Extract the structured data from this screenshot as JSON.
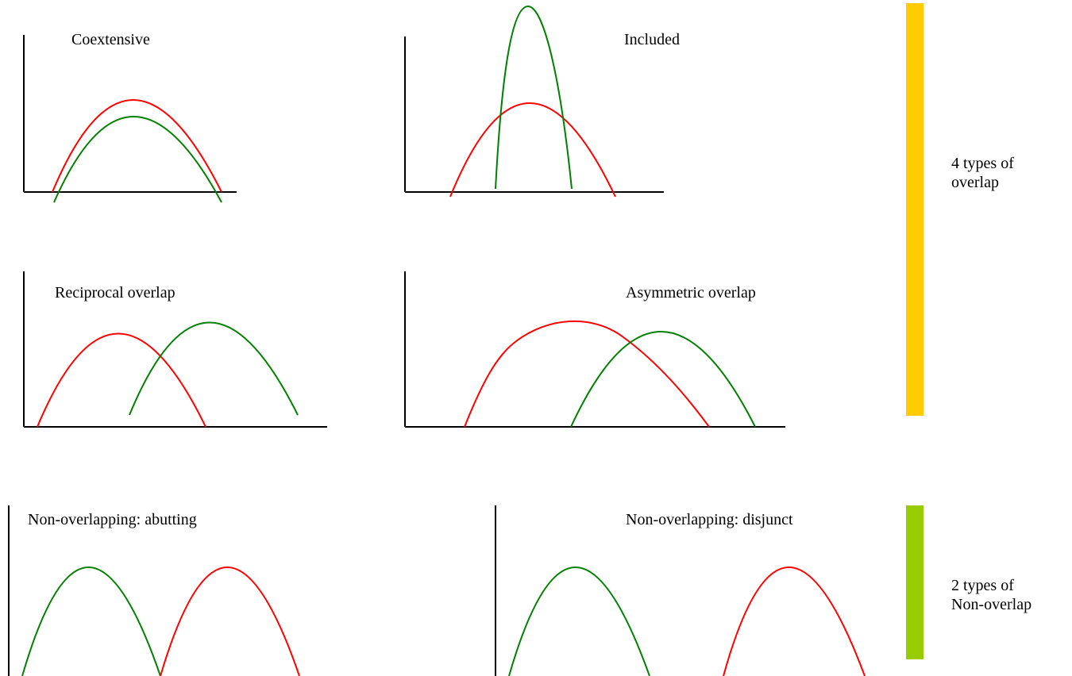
{
  "panels": [
    {
      "id": "coextensive",
      "label": "Coextensive"
    },
    {
      "id": "included",
      "label": "Included"
    },
    {
      "id": "reciprocal",
      "label": "Reciprocal overlap"
    },
    {
      "id": "asymmetric",
      "label": "Asymmetric overlap"
    },
    {
      "id": "abutting",
      "label": "Non-overlapping: abutting"
    },
    {
      "id": "disjunct",
      "label": "Non-overlapping: disjunct"
    }
  ],
  "groups": {
    "overlap": {
      "line1": "4 types of",
      "line2": "overlap",
      "color": "#FFCC00"
    },
    "non_overlap": {
      "line1": "2 types of",
      "line2": "Non-overlap",
      "color": "#99CC00"
    }
  },
  "colors": {
    "curve_a": "#FF0000",
    "curve_b": "#008000",
    "axis": "#000000"
  }
}
